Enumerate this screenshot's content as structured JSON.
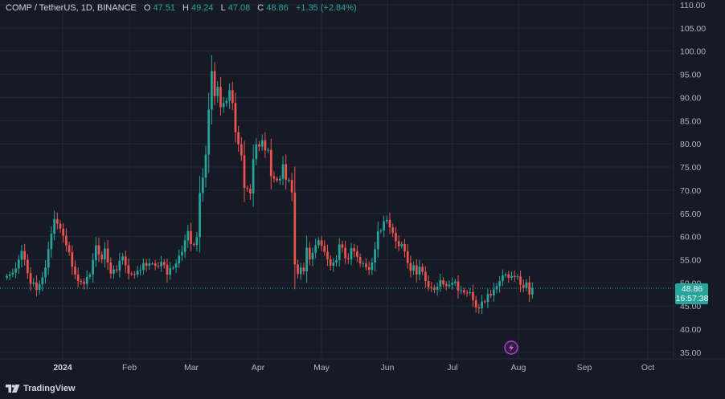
{
  "header": {
    "symbol": "COMP / TetherUS, 1D, BINANCE",
    "o_label": "O",
    "o": "47.51",
    "h_label": "H",
    "h": "49.24",
    "l_label": "L",
    "l": "47.08",
    "c_label": "C",
    "c": "48.86",
    "change": "+1.35 (+2.84%)"
  },
  "price_badge": {
    "price": "48.86",
    "countdown": "16:57:38",
    "color": "#26a69a"
  },
  "brand": {
    "name": "TradingView"
  },
  "colors": {
    "up": "#26a69a",
    "down": "#ef5350",
    "background": "#161a25",
    "grid": "#232733"
  },
  "chart_data": {
    "type": "candlestick",
    "title": "COMP / TetherUS, 1D, BINANCE",
    "ylim": [
      35,
      110
    ],
    "y_ticks": [
      "110.00",
      "105.00",
      "100.00",
      "95.00",
      "90.00",
      "85.00",
      "80.00",
      "75.00",
      "70.00",
      "65.00",
      "60.00",
      "55.00",
      "50.00",
      "45.00",
      "40.00",
      "35.00"
    ],
    "x_ticks": [
      "2024",
      "Feb",
      "Mar",
      "Apr",
      "May",
      "Jun",
      "Jul",
      "Aug",
      "Sep",
      "Oct"
    ],
    "grid": true,
    "last_close": 48.86,
    "series": [
      {
        "values": [
          51.5,
          51.8,
          52.2,
          53.1,
          55.0,
          56.9,
          55.0,
          52.1,
          49.8,
          50.1,
          48.5,
          49.7,
          51.2,
          53.3,
          57.3,
          60.6,
          63.8,
          62.8,
          61.7,
          60.2,
          58.1,
          56.6,
          53.5,
          51.8,
          50.4,
          50.2,
          49.8,
          51.3,
          51.8,
          54.9,
          58.1,
          56.1,
          55.1,
          57.4,
          54.4,
          52.0,
          52.9,
          52.7,
          54.8,
          55.7,
          53.8,
          52.0,
          51.9,
          51.8,
          52.6,
          52.8,
          54.3,
          53.7,
          54.2,
          54.2,
          53.7,
          53.6,
          54.5,
          53.9,
          51.8,
          53.2,
          53.3,
          54.2,
          55.9,
          56.7,
          59.2,
          61.2,
          58.4,
          58.2,
          59.9,
          69.4,
          72.7,
          77.7,
          87.4,
          95.7,
          90.3,
          92.3,
          87.9,
          88.8,
          89.3,
          91.6,
          88.8,
          82.5,
          79.9,
          77.5,
          70.5,
          70.3,
          69.3,
          76.7,
          79.9,
          79.4,
          80.8,
          78.6,
          78.7,
          73.0,
          72.5,
          72.1,
          72.5,
          75.6,
          72.2,
          72.2,
          69.5,
          54.0,
          51.9,
          53.3,
          52.5,
          57.6,
          55.1,
          56.5,
          58.1,
          59.2,
          58.0,
          56.7,
          55.1,
          53.7,
          54.4,
          54.9,
          58.3,
          57.6,
          55.3,
          55.1,
          57.5,
          56.8,
          55.6,
          54.2,
          54.2,
          53.4,
          52.8,
          54.4,
          57.3,
          61.1,
          61.3,
          63.3,
          63.6,
          62.0,
          60.8,
          59.0,
          57.9,
          58.4,
          56.8,
          54.3,
          52.6,
          53.8,
          51.8,
          53.5,
          52.4,
          50.4,
          49.1,
          49.0,
          48.5,
          49.2,
          50.6,
          49.7,
          49.3,
          49.6,
          50.0,
          50.3,
          48.3,
          48.4,
          47.9,
          47.8,
          48.0,
          46.3,
          44.7,
          44.5,
          46.0,
          45.9,
          47.6,
          47.3,
          48.6,
          49.3,
          50.4,
          51.6,
          51.8,
          51.1,
          51.5,
          51.3,
          51.4,
          49.6,
          48.9,
          50.1,
          47.5,
          48.86
        ]
      }
    ]
  }
}
